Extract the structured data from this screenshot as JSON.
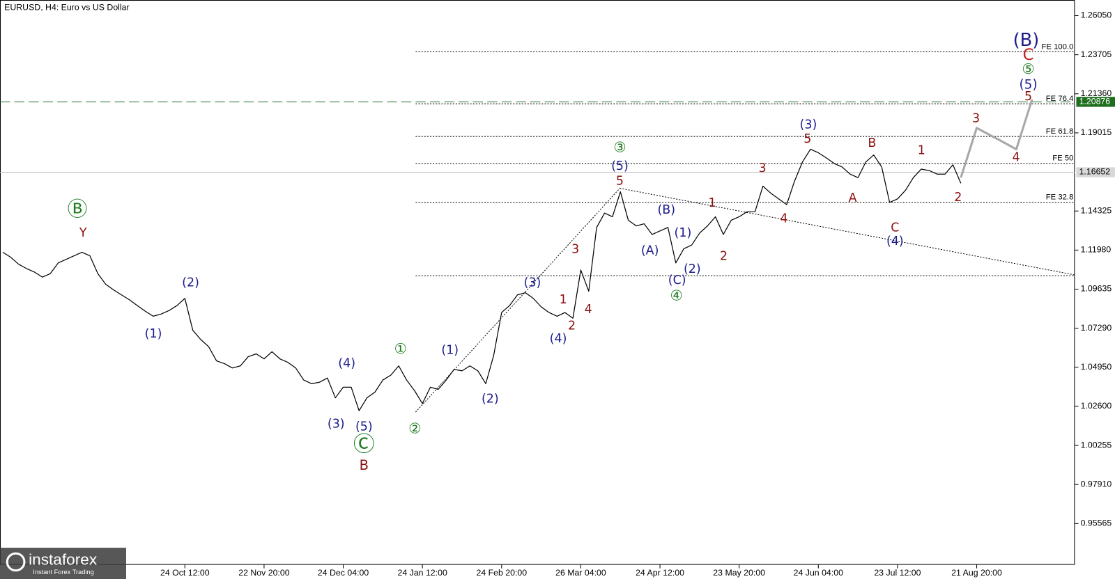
{
  "chart_data": {
    "type": "line",
    "title": "EURUSD, H4:  Euro vs US Dollar",
    "categories": [
      null,
      null,
      null,
      null,
      null,
      null,
      null,
      null,
      null,
      null,
      null,
      null,
      null,
      null,
      null,
      null,
      null,
      null,
      null,
      null,
      null,
      null,
      null,
      "24 Oct 12:00",
      null,
      null,
      null,
      null,
      null,
      null,
      null,
      null,
      null,
      "22 Nov 20:00",
      null,
      null,
      null,
      null,
      null,
      null,
      null,
      null,
      null,
      "24 Dec 04:00",
      null,
      null,
      null,
      null,
      null,
      null,
      null,
      null,
      null,
      "24 Jan 12:00",
      null,
      null,
      null,
      null,
      null,
      null,
      null,
      null,
      null,
      "24 Feb 20:00",
      null,
      null,
      null,
      null,
      null,
      null,
      null,
      null,
      null,
      "26 Mar 04:00",
      null,
      null,
      null,
      null,
      null,
      null,
      null,
      null,
      null,
      "24 Apr 12:00",
      null,
      null,
      null,
      null,
      null,
      null,
      null,
      null,
      null,
      "23 May 20:00",
      null,
      null,
      null,
      null,
      null,
      null,
      null,
      null,
      null,
      "24 Jun 04:00",
      null,
      null,
      null,
      null,
      null,
      null,
      null,
      null,
      null,
      "23 Jul 12:00",
      null,
      null,
      null,
      null,
      null,
      null,
      null,
      null,
      null,
      "21 Aug 20:00",
      null,
      null,
      null,
      null,
      null,
      null,
      null
    ],
    "series": [
      {
        "color": "#000000",
        "values": [
          1.1185,
          1.1155,
          1.1113,
          1.1087,
          1.1066,
          1.1036,
          1.1057,
          1.1121,
          1.1142,
          1.1164,
          1.1185,
          1.1164,
          1.1057,
          1.0993,
          1.0959,
          1.0929,
          1.0899,
          1.0865,
          1.0831,
          1.0801,
          1.0814,
          1.0835,
          1.0865,
          1.0908,
          1.0716,
          1.0661,
          1.0618,
          1.0533,
          1.0516,
          1.049,
          1.0503,
          1.0558,
          1.0575,
          1.0545,
          1.0588,
          1.0545,
          1.0524,
          1.049,
          1.0418,
          1.0396,
          1.0405,
          1.043,
          1.0311,
          1.0375,
          1.0375,
          1.0234,
          1.0311,
          1.0345,
          1.0418,
          1.0447,
          1.0503,
          1.0418,
          1.0354,
          1.0277,
          1.0375,
          1.0362,
          1.0418,
          1.0482,
          1.0473,
          1.0503,
          1.0473,
          1.0396,
          1.0567,
          1.0823,
          1.0865,
          1.0929,
          1.0942,
          1.0908,
          1.0857,
          1.0823,
          1.0801,
          1.0823,
          1.0789,
          1.1078,
          1.0951,
          1.1334,
          1.142,
          1.1398,
          1.1548,
          1.1377,
          1.1343,
          1.1356,
          1.1292,
          1.1313,
          1.1334,
          1.1121,
          1.1206,
          1.1228,
          1.13,
          1.1343,
          1.1398,
          1.1292,
          1.1377,
          1.1398,
          1.1428,
          1.1428,
          1.1582,
          1.1539,
          1.1505,
          1.1471,
          1.1612,
          1.1727,
          1.1803,
          1.1782,
          1.1752,
          1.1718,
          1.1697,
          1.1654,
          1.1633,
          1.1727,
          1.1769,
          1.1697,
          1.1484,
          1.1505,
          1.1556,
          1.1633,
          1.1684,
          1.1675,
          1.1654,
          1.1654,
          1.171,
          1.1599,
          null,
          null,
          null,
          null,
          null,
          null,
          null,
          null,
          null
        ]
      },
      {
        "color": "#a8a8a8",
        "values": [
          null,
          null,
          null,
          null,
          null,
          null,
          null,
          null,
          null,
          null,
          null,
          null,
          null,
          null,
          null,
          null,
          null,
          null,
          null,
          null,
          null,
          null,
          null,
          null,
          null,
          null,
          null,
          null,
          null,
          null,
          null,
          null,
          null,
          null,
          null,
          null,
          null,
          null,
          null,
          null,
          null,
          null,
          null,
          null,
          null,
          null,
          null,
          null,
          null,
          null,
          null,
          null,
          null,
          null,
          null,
          null,
          null,
          null,
          null,
          null,
          null,
          null,
          null,
          null,
          null,
          null,
          null,
          null,
          null,
          null,
          null,
          null,
          null,
          null,
          null,
          null,
          null,
          null,
          null,
          null,
          null,
          null,
          null,
          null,
          null,
          null,
          null,
          null,
          null,
          null,
          null,
          null,
          null,
          null,
          null,
          null,
          null,
          null,
          null,
          null,
          null,
          null,
          null,
          null,
          null,
          null,
          null,
          null,
          null,
          null,
          null,
          null,
          null,
          null,
          null,
          null,
          null,
          null,
          null,
          null,
          null,
          1.1633,
          1.1782,
          1.1931,
          1.1906,
          1.188,
          1.1855,
          1.1829,
          1.1803,
          1.1953,
          1.2102
        ]
      }
    ],
    "ylim": [
      0.9309,
      1.2699
    ],
    "yticks": [
      {
        "value": 1.2605,
        "label": "1.26050"
      },
      1.23705,
      {
        "value": 1.2136,
        "label": "1.21360"
      },
      1.19015,
      1.14325,
      {
        "value": 1.1198,
        "label": "1.11980"
      },
      1.09635,
      {
        "value": 1.0729,
        "label": "1.07290"
      },
      {
        "value": 1.0495,
        "label": "1.04950"
      },
      {
        "value": 1.026,
        "label": "1.02600"
      },
      1.00255,
      {
        "value": 0.9791,
        "label": "0.97910"
      },
      0.95565
    ],
    "current_price": 1.16652,
    "target_price": 1.20876,
    "levels": [
      {
        "label": "FE 100.0",
        "value": 1.2388
      },
      {
        "label": "FE 76.4",
        "value": 1.2076
      },
      {
        "label": "FE 61.8",
        "value": 1.188
      },
      {
        "label": "FE 50",
        "value": 1.1718
      },
      {
        "label": "FE 32.8",
        "value": 1.1484
      },
      {
        "value": 1.1044
      }
    ],
    "annotations": [
      {
        "text": "Ⓑ",
        "color": "#1e7b1e"
      },
      {
        "text": "Y",
        "color": "#8b1010"
      },
      {
        "text": "(2)",
        "color": "#1c1c8c"
      },
      {
        "text": "(1)",
        "color": "#1c1c8c"
      },
      {
        "text": "(4)",
        "color": "#1c1c8c"
      },
      {
        "text": "(3)",
        "color": "#1c1c8c"
      },
      {
        "text": "(5)",
        "color": "#1c1c8c"
      },
      {
        "text": "Ⓒ",
        "color": "#1e7b1e"
      },
      {
        "text": "B",
        "color": "#8b1010"
      },
      {
        "text": "①",
        "color": "#1e7b1e"
      },
      {
        "text": "②",
        "color": "#1e7b1e"
      },
      {
        "text": "(1)",
        "color": "#1c1c8c"
      },
      {
        "text": "(2)",
        "color": "#1c1c8c"
      },
      {
        "text": "(3)",
        "color": "#1c1c8c"
      },
      {
        "text": "(4)",
        "color": "#1c1c8c"
      },
      {
        "text": "1",
        "color": "#8b1010"
      },
      {
        "text": "2",
        "color": "#8b1010"
      },
      {
        "text": "3",
        "color": "#8b1010"
      },
      {
        "text": "4",
        "color": "#8b1010"
      },
      {
        "text": "③",
        "color": "#1e7b1e"
      },
      {
        "text": "(5)",
        "color": "#1c1c8c"
      },
      {
        "text": "5",
        "color": "#8b1010"
      },
      {
        "text": "(B)",
        "color": "#1c1c8c"
      },
      {
        "text": "(A)",
        "color": "#1c1c8c"
      },
      {
        "text": "(1)",
        "color": "#1c1c8c"
      },
      {
        "text": "(2)",
        "color": "#1c1c8c"
      },
      {
        "text": "(C)",
        "color": "#1c1c8c"
      },
      {
        "text": "④",
        "color": "#1e7b1e"
      },
      {
        "text": "1",
        "color": "#8b1010"
      },
      {
        "text": "2",
        "color": "#8b1010"
      },
      {
        "text": "3",
        "color": "#8b1010"
      },
      {
        "text": "4",
        "color": "#8b1010"
      },
      {
        "text": "(3)",
        "color": "#1c1c8c"
      },
      {
        "text": "5",
        "color": "#8b1010"
      },
      {
        "text": "B",
        "color": "#8b1010"
      },
      {
        "text": "A",
        "color": "#8b1010"
      },
      {
        "text": "C",
        "color": "#8b1010"
      },
      {
        "text": "(4)",
        "color": "#1c1c8c"
      },
      {
        "text": "1",
        "color": "#8b1010"
      },
      {
        "text": "2",
        "color": "#8b1010"
      },
      {
        "text": "3",
        "color": "#8b1010"
      },
      {
        "text": "4",
        "color": "#8b1010"
      },
      {
        "text": "5",
        "color": "#8b1010"
      },
      {
        "text": "(5)",
        "color": "#1c1c8c"
      },
      {
        "text": "⑤",
        "color": "#1e7b1e"
      },
      {
        "text": "C",
        "color": "#c0201a"
      },
      {
        "text": "(B)",
        "color": "#1c1c8c"
      }
    ],
    "logo": {
      "name": "instaforex",
      "tagline": "Instant Forex Trading"
    }
  }
}
